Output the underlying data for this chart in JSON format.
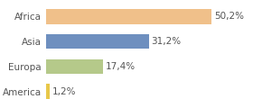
{
  "categories": [
    "America",
    "Europa",
    "Asia",
    "Africa"
  ],
  "values": [
    1.2,
    17.4,
    31.2,
    50.2
  ],
  "labels": [
    "1,2%",
    "17,4%",
    "31,2%",
    "50,2%"
  ],
  "bar_colors": [
    "#e8c84a",
    "#b5c98a",
    "#6e8fbf",
    "#f0c08a"
  ],
  "background_color": "#ffffff",
  "xlim": [
    0,
    62
  ],
  "bar_height": 0.6,
  "label_fontsize": 7.5,
  "tick_fontsize": 7.5
}
